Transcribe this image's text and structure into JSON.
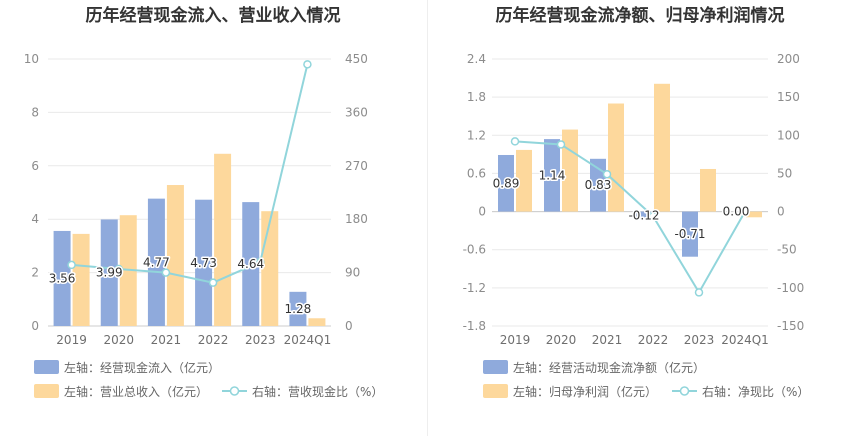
{
  "chart_data": [
    {
      "type": "bar",
      "title": "历年经营现金流入、营业收入情况",
      "categories": [
        "2019",
        "2020",
        "2021",
        "2022",
        "2023",
        "2024Q1"
      ],
      "y_left": {
        "min": 0,
        "max": 10,
        "ticks": [
          0,
          2,
          4,
          6,
          8,
          10
        ]
      },
      "y_right": {
        "min": 0,
        "max": 450,
        "ticks": [
          0,
          90,
          180,
          270,
          360,
          450
        ]
      },
      "grid": true,
      "legend": "bottom",
      "series": [
        {
          "name": "左轴：经营现金流入（亿元）",
          "type": "bar",
          "axis": "left",
          "color": "#8faadc",
          "values": [
            3.56,
            3.99,
            4.77,
            4.73,
            4.64,
            1.28
          ],
          "data_labels": true
        },
        {
          "name": "左轴：营业总收入（亿元）",
          "type": "bar",
          "axis": "left",
          "color": "#fdd89c",
          "values": [
            3.45,
            4.15,
            5.28,
            6.45,
            4.3,
            0.29
          ],
          "data_labels": false
        },
        {
          "name": "右轴：营收现金比（%）",
          "type": "line",
          "axis": "right",
          "color": "#91d5db",
          "values": [
            103,
            96,
            90,
            73,
            108,
            441
          ]
        }
      ]
    },
    {
      "type": "bar",
      "title": "历年经营现金流净额、归母净利润情况",
      "categories": [
        "2019",
        "2020",
        "2021",
        "2022",
        "2023",
        "2024Q1"
      ],
      "y_left": {
        "min": -1.8,
        "max": 2.4,
        "ticks": [
          -1.8,
          -1.2,
          -0.6,
          0,
          0.6,
          1.2,
          1.8,
          2.4
        ]
      },
      "y_right": {
        "min": -150,
        "max": 200,
        "ticks": [
          -150,
          -100,
          -50,
          0,
          50,
          100,
          150,
          200
        ]
      },
      "grid": true,
      "legend": "bottom",
      "series": [
        {
          "name": "左轴：经营活动现金流净额（亿元）",
          "type": "bar",
          "axis": "left",
          "color": "#8faadc",
          "values": [
            0.89,
            1.14,
            0.83,
            -0.12,
            -0.71,
            0.0
          ],
          "data_labels": true
        },
        {
          "name": "左轴：归母净利润（亿元）",
          "type": "bar",
          "axis": "left",
          "color": "#fdd89c",
          "values": [
            0.97,
            1.29,
            1.7,
            2.01,
            0.67,
            -0.09
          ],
          "data_labels": false
        },
        {
          "name": "右轴：净现比（%）",
          "type": "line",
          "axis": "right",
          "color": "#91d5db",
          "values": [
            92,
            88,
            49,
            -6,
            -106,
            0
          ]
        }
      ]
    }
  ]
}
